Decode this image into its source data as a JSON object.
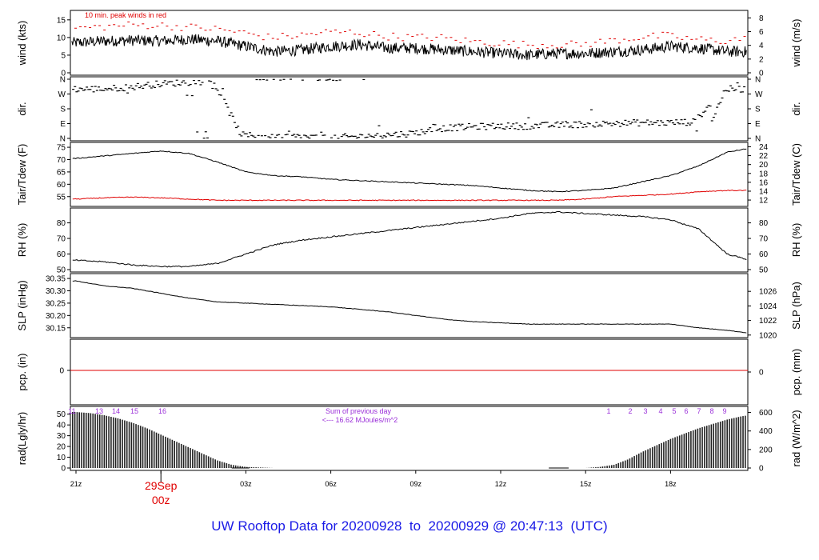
{
  "title": "UW Rooftop Data for 20200928  to  20200929 @ 20:47:13  (UTC)",
  "date_label": {
    "day": "29Sep",
    "hour": "00z"
  },
  "colors": {
    "title": "#1a1ae6",
    "peak": "#e00000",
    "date": "#e00000",
    "solar": "#9b30d9",
    "series": "#000000"
  },
  "chart_data": [
    {
      "panel": "wind",
      "type": "line",
      "ylabel_left": "wind (kts)",
      "ylabel_right": "wind (m/s)",
      "ylim": [
        0,
        17
      ],
      "yticks_left": [
        0,
        5,
        10,
        15
      ],
      "yticks_right": [
        0,
        2,
        4,
        6,
        8
      ],
      "annotation": "10 min. peak winds in red",
      "series": [
        {
          "name": "wind speed",
          "color": "#000000",
          "x_hours": [
            0,
            1,
            2,
            3,
            4,
            5,
            6,
            7,
            8,
            9,
            10,
            11,
            12,
            13,
            14,
            15,
            16,
            17,
            18,
            19,
            20,
            21,
            22,
            23,
            24
          ],
          "values": [
            8.5,
            9.0,
            9.2,
            9.0,
            9.5,
            9.0,
            7.5,
            6.0,
            6.5,
            7.5,
            8.0,
            7.0,
            7.0,
            6.5,
            6.0,
            5.5,
            5.0,
            5.5,
            5.5,
            6.0,
            6.5,
            7.5,
            7.0,
            6.0,
            6.0
          ]
        },
        {
          "name": "10 min. peak winds",
          "color": "#e00000",
          "x_hours": [
            0,
            1,
            2,
            3,
            4,
            5,
            6,
            7,
            8,
            9,
            10,
            11,
            12,
            13,
            14,
            15,
            16,
            17,
            18,
            19,
            20,
            21,
            22,
            23,
            24
          ],
          "values": [
            12.5,
            13.0,
            13.5,
            13.5,
            13.0,
            12.5,
            11.5,
            10.0,
            10.5,
            11.5,
            11.5,
            10.5,
            10.0,
            10.0,
            9.0,
            8.5,
            8.0,
            8.0,
            8.0,
            9.0,
            10.0,
            10.5,
            9.5,
            9.0,
            10.0
          ]
        }
      ]
    },
    {
      "panel": "dir",
      "type": "scatter",
      "ylabel_left": "dir.",
      "ylabel_right": "dir.",
      "yticks_left": [
        "N",
        "E",
        "S",
        "W",
        "N"
      ],
      "yticks_right": [
        "N",
        "E",
        "S",
        "W",
        "N"
      ],
      "ylim_degrees": [
        0,
        360
      ],
      "series": [
        {
          "name": "direction",
          "x_hours": [
            0,
            1,
            2,
            3,
            4,
            5,
            6,
            7,
            8,
            9,
            10,
            11,
            12,
            13,
            14,
            15,
            16,
            17,
            18,
            19,
            20,
            21,
            22,
            23,
            24
          ],
          "values": [
            300,
            300,
            310,
            330,
            340,
            350,
            20,
            10,
            10,
            5,
            10,
            20,
            30,
            60,
            70,
            75,
            75,
            80,
            85,
            90,
            95,
            95,
            100,
            300,
            300
          ]
        }
      ]
    },
    {
      "panel": "temp",
      "type": "line",
      "ylabel_left": "Tair/Tdew (F)",
      "ylabel_right": "Tair/Tdew (C)",
      "ylim": [
        52,
        76
      ],
      "yticks_left": [
        55,
        60,
        65,
        70,
        75
      ],
      "yticks_right": [
        12,
        14,
        16,
        18,
        20,
        22,
        24
      ],
      "series": [
        {
          "name": "Tair",
          "color": "#000000",
          "x_hours": [
            0,
            1,
            2,
            3,
            4,
            5,
            6,
            7,
            8,
            9,
            10,
            11,
            12,
            13,
            14,
            15,
            16,
            17,
            18,
            19,
            20,
            21,
            22,
            23,
            24
          ],
          "values": [
            70.5,
            71.5,
            72.5,
            73.5,
            72.5,
            69.0,
            65.0,
            63.5,
            63.0,
            62.0,
            61.5,
            61.0,
            60.5,
            60.0,
            59.5,
            58.5,
            57.5,
            57.0,
            57.5,
            58.5,
            61.0,
            63.5,
            67.5,
            73.0,
            75.0
          ]
        },
        {
          "name": "Tdew",
          "color": "#e00000",
          "x_hours": [
            0,
            1,
            2,
            3,
            4,
            5,
            6,
            7,
            8,
            9,
            10,
            11,
            12,
            13,
            14,
            15,
            16,
            17,
            18,
            19,
            20,
            21,
            22,
            23,
            24
          ],
          "values": [
            54.0,
            54.5,
            54.8,
            54.5,
            54.0,
            53.5,
            53.5,
            53.5,
            53.5,
            53.5,
            53.5,
            53.5,
            53.5,
            53.5,
            53.5,
            53.5,
            53.5,
            53.5,
            54.0,
            55.0,
            55.5,
            56.0,
            57.0,
            57.5,
            57.5
          ]
        }
      ]
    },
    {
      "panel": "rh",
      "type": "line",
      "ylabel_left": "RH (%)",
      "ylabel_right": "RH (%)",
      "ylim": [
        50,
        88
      ],
      "yticks_left": [
        50,
        60,
        70,
        80
      ],
      "yticks_right": [
        50,
        60,
        70,
        80
      ],
      "series": [
        {
          "name": "RH",
          "color": "#000000",
          "x_hours": [
            0,
            1,
            2,
            3,
            4,
            5,
            6,
            7,
            8,
            9,
            10,
            11,
            12,
            13,
            14,
            15,
            16,
            17,
            18,
            19,
            20,
            21,
            22,
            23,
            24
          ],
          "values": [
            56,
            55,
            53,
            52,
            52,
            54,
            60,
            66,
            69,
            71,
            73,
            75,
            77,
            79,
            81,
            83,
            86,
            87,
            86,
            85,
            84,
            82,
            76,
            60,
            55
          ]
        }
      ]
    },
    {
      "panel": "slp",
      "type": "line",
      "ylabel_left": "SLP (inHg)",
      "ylabel_right": "SLP (hPa)",
      "ylim": [
        30.12,
        30.36
      ],
      "yticks_left": [
        30.15,
        30.2,
        30.25,
        30.3,
        30.35
      ],
      "yticks_right": [
        1020,
        1022,
        1024,
        1026
      ],
      "series": [
        {
          "name": "SLP",
          "color": "#000000",
          "x_hours": [
            0,
            1,
            2,
            3,
            4,
            5,
            6,
            7,
            8,
            9,
            10,
            11,
            12,
            13,
            14,
            15,
            16,
            17,
            18,
            19,
            20,
            21,
            22,
            23,
            24
          ],
          "values": [
            30.34,
            30.32,
            30.31,
            30.29,
            30.27,
            30.255,
            30.25,
            30.245,
            30.24,
            30.235,
            30.225,
            30.215,
            30.2,
            30.185,
            30.175,
            30.17,
            30.165,
            30.165,
            30.165,
            30.165,
            30.165,
            30.165,
            30.15,
            30.14,
            30.125
          ]
        }
      ]
    },
    {
      "panel": "pcp",
      "type": "line",
      "ylabel_left": "pcp. (in)",
      "ylabel_right": "pcp. (mm)",
      "yticks_left": [
        0
      ],
      "yticks_right": [
        0
      ],
      "series": [
        {
          "name": "precipitation",
          "color": "#e00000",
          "x_hours": [
            0,
            24
          ],
          "values": [
            0,
            0
          ]
        }
      ]
    },
    {
      "panel": "rad",
      "type": "area",
      "ylabel_left": "rad(Lgly/hr)",
      "ylabel_right": "rad (W/m^2)",
      "ylim": [
        0,
        55
      ],
      "yticks_left": [
        0,
        10,
        20,
        30,
        40,
        50
      ],
      "yticks_right": [
        0,
        200,
        400,
        600
      ],
      "annotation": [
        "Sum of previous day",
        "<--- 16.62 MJoules/m^2"
      ],
      "solar_hours_left": [
        "11",
        "13",
        "14",
        "15",
        "16"
      ],
      "solar_hours_right": [
        "1",
        "2",
        "3",
        "4",
        "5",
        "6",
        "7",
        "8",
        "9"
      ],
      "series": [
        {
          "name": "radiation",
          "x_hours": [
            0,
            0.5,
            1,
            1.5,
            2,
            2.5,
            3,
            3.5,
            4,
            4.5,
            5,
            5.5,
            6,
            6.5,
            7,
            7.5,
            8,
            8.5,
            9,
            9.5,
            10,
            10.5,
            11,
            11.5,
            12,
            12.5,
            13,
            13.5,
            14,
            14.5,
            15,
            15.5,
            16,
            16.5,
            17,
            17.5,
            18,
            18.5,
            19,
            19.5,
            20,
            20.5,
            21,
            21.5,
            22,
            22.5,
            23,
            23.5,
            24
          ],
          "values": [
            52,
            51,
            49,
            46,
            42,
            37,
            31,
            25,
            19,
            13,
            7,
            3,
            1,
            0.5,
            0,
            0,
            0,
            0,
            0,
            0,
            0,
            0,
            0,
            0,
            0,
            0,
            0,
            0,
            0,
            0,
            0,
            0,
            0,
            0,
            0,
            0,
            0,
            1,
            3,
            8,
            15,
            21,
            27,
            32,
            37,
            41,
            45,
            48,
            50
          ]
        }
      ]
    }
  ],
  "x_axis": {
    "ticks": [
      "21z",
      "00z",
      "03z",
      "06z",
      "09z",
      "12z",
      "15z",
      "18z"
    ],
    "start_label": "21z"
  }
}
